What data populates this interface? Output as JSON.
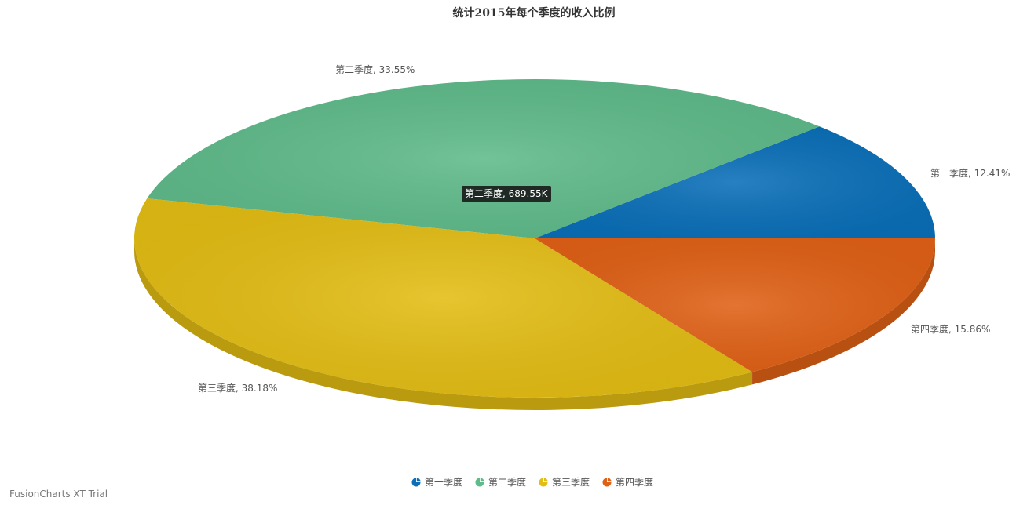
{
  "chart_data": {
    "type": "pie",
    "title": "统计2015年每个季度的收入比例",
    "categories": [
      "第一季度",
      "第二季度",
      "第三季度",
      "第四季度"
    ],
    "percentages": [
      12.41,
      33.55,
      38.18,
      15.86
    ],
    "labels": [
      "第一季度, 12.41%",
      "第二季度, 33.55%",
      "第三季度, 38.18%",
      "第四季度, 15.86%"
    ],
    "colors": [
      "#0a6fb8",
      "#5fbb8a",
      "#e3bd14",
      "#e06116"
    ],
    "legend_placement": "bottom-center",
    "tooltip": "第二季度, 689.55K",
    "style": "3d"
  },
  "legend": {
    "items": [
      "第一季度",
      "第二季度",
      "第三季度",
      "第四季度"
    ]
  },
  "watermark": "FusionCharts XT Trial"
}
